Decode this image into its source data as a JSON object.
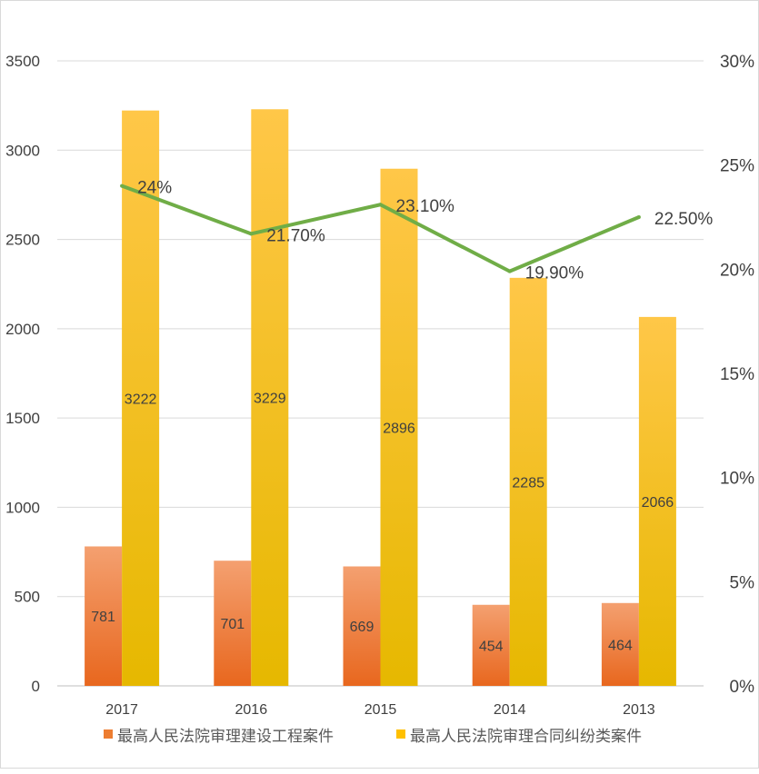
{
  "chart_data": {
    "type": "bar",
    "categories": [
      "2017",
      "2016",
      "2015",
      "2014",
      "2013"
    ],
    "series": [
      {
        "name": "最高人民法院审理建设工程案件",
        "kind": "bar",
        "axis": "left",
        "color": "#ED7D31",
        "values": [
          781,
          701,
          669,
          454,
          464
        ]
      },
      {
        "name": "最高人民法院审理合同纠纷类案件",
        "kind": "bar",
        "axis": "left",
        "color": "#FFC000",
        "values": [
          3222,
          3229,
          2896,
          2285,
          2066
        ]
      },
      {
        "kind": "line",
        "axis": "right",
        "color": "#70AD47",
        "values": [
          24,
          21.7,
          23.1,
          19.9,
          22.5
        ],
        "labels": [
          "24%",
          "21.70%",
          "23.10%",
          "19.90%",
          "22.50%"
        ]
      }
    ],
    "left_axis": {
      "ylim": [
        0,
        3500
      ],
      "ticks": [
        "0",
        "500",
        "1000",
        "1500",
        "2000",
        "2500",
        "3000",
        "3500"
      ]
    },
    "right_axis": {
      "ylim": [
        0,
        30
      ],
      "ticks": [
        "0%",
        "5%",
        "10%",
        "15%",
        "20%",
        "25%",
        "30%"
      ]
    },
    "grid": true,
    "legend": "bottom"
  }
}
